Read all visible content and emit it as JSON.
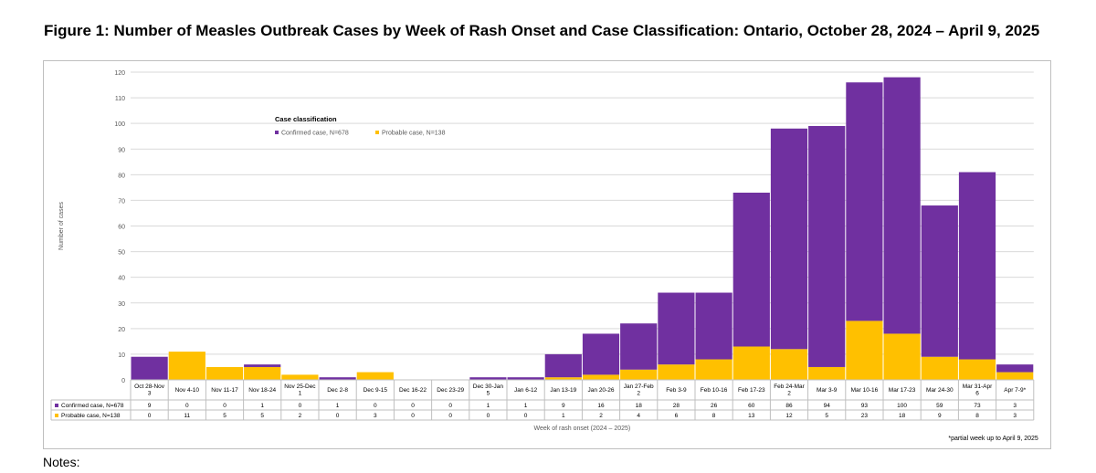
{
  "figure_title": "Figure 1: Number of Measles Outbreak Cases by Week of Rash Onset and Case Classification: Ontario, October 28, 2024 – April 9, 2025",
  "notes_label": "Notes:",
  "footnote": "*partial week up to April 9, 2025",
  "colors": {
    "confirmed": "#7030a0",
    "probable": "#ffc000",
    "grid": "#d9d9d9",
    "axis_text": "#595959"
  },
  "chart_data": {
    "type": "bar",
    "stacked": true,
    "title": "",
    "xlabel": "Week of rash onset (2024 – 2025)",
    "ylabel": "Number of cases",
    "ylim": [
      0,
      120
    ],
    "yticks": [
      0,
      10,
      20,
      30,
      40,
      50,
      60,
      70,
      80,
      90,
      100,
      110,
      120
    ],
    "legend_title": "Case classification",
    "legend_position": "top-left",
    "categories": [
      [
        "Oct 28-Nov",
        "3"
      ],
      [
        "Nov 4-10"
      ],
      [
        "Nov 11-17"
      ],
      [
        "Nov 18-24"
      ],
      [
        "Nov 25-Dec",
        "1"
      ],
      [
        "Dec 2-8"
      ],
      [
        "Dec 9-15"
      ],
      [
        "Dec 16-22"
      ],
      [
        "Dec 23-29"
      ],
      [
        "Dec 30-Jan",
        "5"
      ],
      [
        "Jan 6-12"
      ],
      [
        "Jan 13-19"
      ],
      [
        "Jan 20-26"
      ],
      [
        "Jan 27-Feb",
        "2"
      ],
      [
        "Feb 3-9"
      ],
      [
        "Feb 10-16"
      ],
      [
        "Feb 17-23"
      ],
      [
        "Feb 24-Mar",
        "2"
      ],
      [
        "Mar 3-9"
      ],
      [
        "Mar 10-16"
      ],
      [
        "Mar 17-23"
      ],
      [
        "Mar 24-30"
      ],
      [
        "Mar 31-Apr",
        "6"
      ],
      [
        "Apr 7-9*"
      ]
    ],
    "series": [
      {
        "name": "Confirmed case, N=678",
        "legend_label": "Confirmed case, N=678",
        "color_key": "confirmed",
        "values": [
          9,
          0,
          0,
          1,
          0,
          1,
          0,
          0,
          0,
          1,
          1,
          9,
          16,
          18,
          28,
          26,
          60,
          86,
          94,
          93,
          100,
          59,
          73,
          3
        ]
      },
      {
        "name": "Probable case, N=138",
        "legend_label": "Probable case, N=138",
        "color_key": "probable",
        "values": [
          0,
          11,
          5,
          5,
          2,
          0,
          3,
          0,
          0,
          0,
          0,
          1,
          2,
          4,
          6,
          8,
          13,
          12,
          5,
          23,
          18,
          9,
          8,
          3
        ]
      }
    ],
    "stack_order": [
      "Probable case, N=138",
      "Confirmed case, N=678"
    ]
  }
}
